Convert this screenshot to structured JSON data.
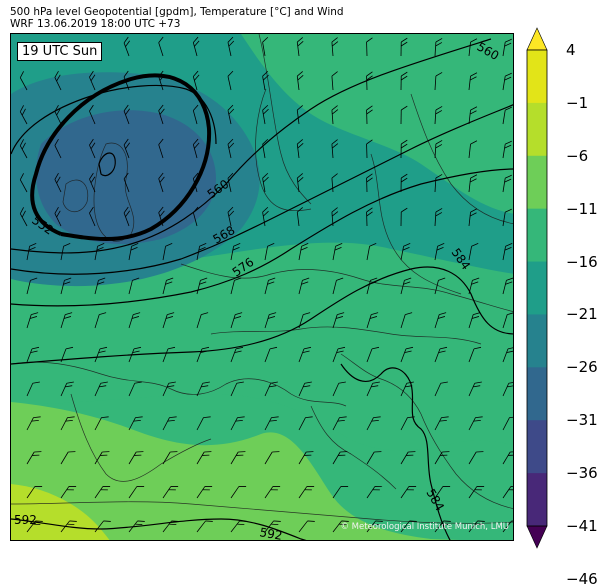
{
  "header": {
    "line1": "500 hPa level Geopotential [gpdm], Temperature [°C] and Wind",
    "line2": "WRF 13.06.2019 18:00 UTC +73"
  },
  "map": {
    "time_label": "19 UTC Sun",
    "credit": "© Meteorological Institute Munich, LMU",
    "contour_labels": [
      "552",
      "560",
      "560",
      "568",
      "576",
      "584",
      "584",
      "592",
      "592"
    ]
  },
  "colorbar": {
    "levels": [
      -46,
      -41,
      -36,
      -31,
      -26,
      -21,
      -16,
      -11,
      -6,
      -1,
      4
    ],
    "tick_labels": [
      "4",
      "−1",
      "−6",
      "−11",
      "−16",
      "−21",
      "−26",
      "−31",
      "−36",
      "−41",
      "−46"
    ],
    "colors": [
      "#440154",
      "#482878",
      "#3e4a89",
      "#31688e",
      "#26828e",
      "#1f9e89",
      "#35b779",
      "#6ece58",
      "#b5de2b",
      "#e2e418",
      "#fde725"
    ]
  }
}
